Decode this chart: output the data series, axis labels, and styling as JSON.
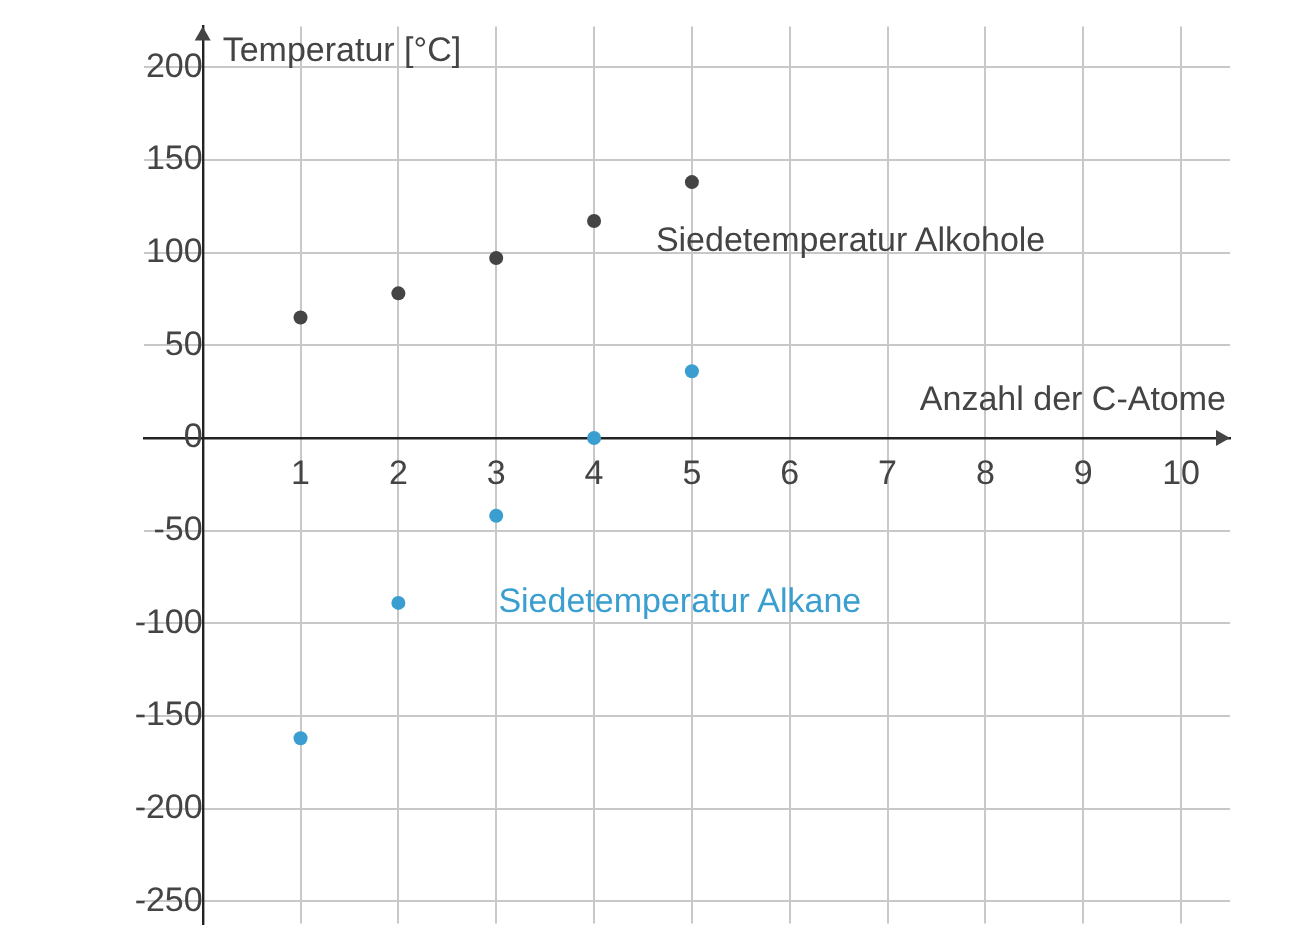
{
  "chart_data": {
    "type": "scatter",
    "xlabel": "Anzahl der C-Atome",
    "ylabel": "Temperatur [°C]",
    "x": [
      1,
      2,
      3,
      4,
      5
    ],
    "series": [
      {
        "name": "Siedetemperatur Alkohole",
        "color": "#444444",
        "values": [
          65,
          78,
          97,
          117,
          138
        ]
      },
      {
        "name": "Siedetemperatur Alkane",
        "color": "#3a9fd0",
        "values": [
          -162,
          -89,
          -42,
          0,
          36
        ]
      }
    ],
    "xlim": [
      -0.6,
      10.5
    ],
    "ylim": [
      -262,
      222
    ],
    "xticks": [
      1,
      2,
      3,
      4,
      5,
      6,
      7,
      8,
      9,
      10
    ],
    "yticks": [
      -250,
      -200,
      -150,
      -100,
      -50,
      0,
      50,
      100,
      150,
      200
    ],
    "grid": true,
    "legend": false,
    "marker": "circle"
  }
}
